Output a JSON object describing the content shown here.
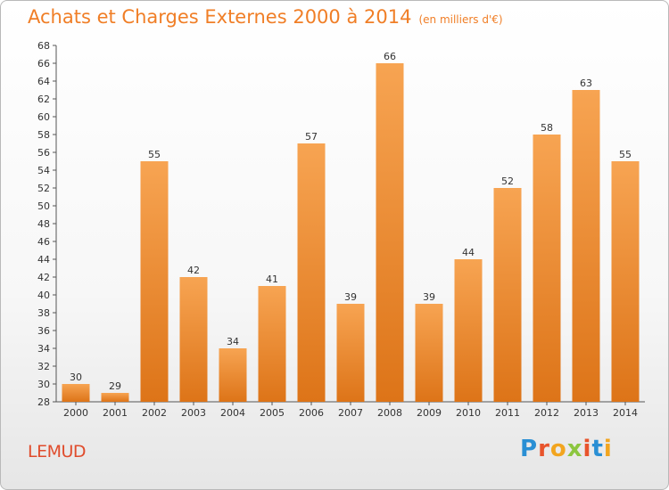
{
  "header": {
    "title": "Achats et Charges Externes 2000 à 2014",
    "subtitle": "(en milliers d'€)"
  },
  "footer": {
    "place": "LEMUD",
    "logo": "Proxiti"
  },
  "colors": {
    "bar_top": "#f7a452",
    "bar_bottom": "#dd7418",
    "title": "#f07e26",
    "place": "#e04c2c"
  },
  "chart_data": {
    "type": "bar",
    "title": "Achats et Charges Externes 2000 à 2014",
    "subtitle": "(en milliers d'€)",
    "categories": [
      "2000",
      "2001",
      "2002",
      "2003",
      "2004",
      "2005",
      "2006",
      "2007",
      "2008",
      "2009",
      "2010",
      "2011",
      "2012",
      "2013",
      "2014"
    ],
    "values": [
      30,
      29,
      55,
      42,
      34,
      41,
      57,
      39,
      66,
      39,
      44,
      52,
      58,
      63,
      55
    ],
    "ylim": [
      28,
      68
    ],
    "yticks": [
      28,
      30,
      32,
      34,
      36,
      38,
      40,
      42,
      44,
      46,
      48,
      50,
      52,
      54,
      56,
      58,
      60,
      62,
      64,
      66,
      68
    ],
    "grid": false,
    "data_labels": true
  }
}
